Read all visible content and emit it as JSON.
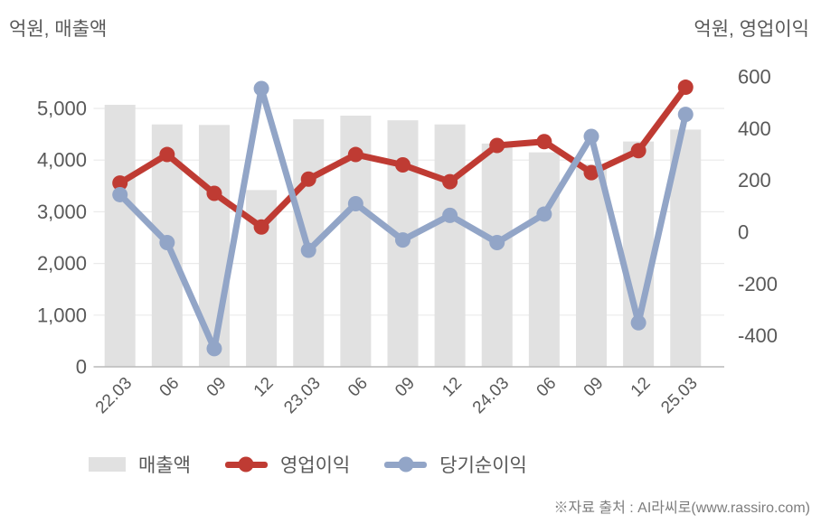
{
  "footer": {
    "source_text": "※자료 출처 : AI라씨로(www.rassiro.com)"
  },
  "colors": {
    "bar": "#e1e1e1",
    "operating_profit": "#bf3b33",
    "net_income": "#92a5c7",
    "grid": "#eaeaea",
    "axis_line": "#b9b9b9",
    "tick_text": "#595959",
    "footer_text": "#7d7d7d"
  },
  "chart_data": {
    "type": "combo_bar_line",
    "categories": [
      "22.03",
      "06",
      "09",
      "12",
      "23.03",
      "06",
      "09",
      "12",
      "24.03",
      "06",
      "09",
      "12",
      "25.03"
    ],
    "series": [
      {
        "name": "매출액",
        "type": "bar",
        "axis": "left",
        "color": "#e1e1e1",
        "values": [
          5070,
          4690,
          4680,
          3420,
          4790,
          4860,
          4770,
          4690,
          4320,
          4150,
          3920,
          4360,
          4590
        ]
      },
      {
        "name": "영업이익",
        "type": "line",
        "axis": "right",
        "color": "#bf3b33",
        "values": [
          190,
          300,
          150,
          20,
          205,
          300,
          260,
          195,
          335,
          350,
          230,
          315,
          560
        ]
      },
      {
        "name": "당기순이익",
        "type": "line",
        "axis": "right",
        "color": "#92a5c7",
        "values": [
          145,
          -40,
          -450,
          555,
          -70,
          110,
          -30,
          65,
          -40,
          70,
          370,
          -350,
          455
        ]
      }
    ],
    "left_axis": {
      "title": "억원, 매출액",
      "unit": "억원",
      "min": 0,
      "max": 5000,
      "ticks": [
        {
          "value": 0,
          "label": "0"
        },
        {
          "value": 1000,
          "label": "1,000"
        },
        {
          "value": 2000,
          "label": "2,000"
        },
        {
          "value": 3000,
          "label": "3,000"
        },
        {
          "value": 4000,
          "label": "4,000"
        },
        {
          "value": 5000,
          "label": "5,000"
        }
      ]
    },
    "right_axis": {
      "title": "억원, 영업이익",
      "unit": "억원",
      "min": -400,
      "max": 600,
      "ticks": [
        {
          "value": 600,
          "label": "600"
        },
        {
          "value": 400,
          "label": "400"
        },
        {
          "value": 200,
          "label": "200"
        },
        {
          "value": 0,
          "label": "0"
        },
        {
          "value": -200,
          "label": "-200"
        },
        {
          "value": -400,
          "label": "-400"
        }
      ]
    },
    "grid": true,
    "legend_position": "bottom",
    "x_tick_rotation_deg": -45
  }
}
